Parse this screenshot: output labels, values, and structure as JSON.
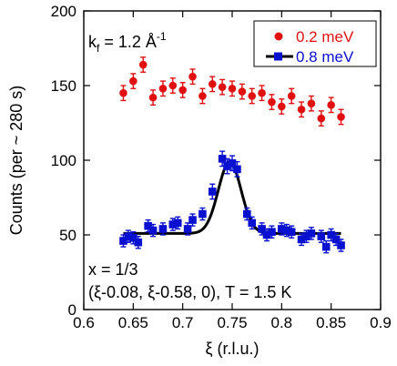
{
  "chart_data": {
    "type": "scatter",
    "xlabel": "ξ (r.l.u.)",
    "ylabel": "Counts (per ~ 280 s)",
    "xlim": [
      0.6,
      0.9
    ],
    "ylim": [
      0,
      200
    ],
    "xticks": [
      "0.6",
      "0.65",
      "0.7",
      "0.75",
      "0.8",
      "0.85",
      "0.9"
    ],
    "yticks": [
      "0",
      "50",
      "100",
      "150",
      "200"
    ],
    "annotations": {
      "kf": "k",
      "kf_sub": "f",
      "kf_eq": " = 1.2 Å",
      "kf_sup": "-1",
      "x_value": "x = 1/3",
      "conditions": "(ξ-0.08, ξ-0.58, 0), T = 1.5 K"
    },
    "legend_position": "top-right",
    "series": [
      {
        "name": "0.2 meV",
        "color": "#e01010",
        "marker": "circle",
        "x": [
          0.64,
          0.65,
          0.66,
          0.67,
          0.68,
          0.69,
          0.7,
          0.71,
          0.72,
          0.73,
          0.74,
          0.75,
          0.76,
          0.77,
          0.78,
          0.79,
          0.8,
          0.81,
          0.82,
          0.83,
          0.84,
          0.85,
          0.86
        ],
        "y": [
          145,
          153,
          164,
          142,
          148,
          150,
          147,
          156,
          143,
          151,
          149,
          148,
          146,
          143,
          145,
          139,
          136,
          143,
          134,
          138,
          128,
          137,
          129
        ],
        "err": [
          5,
          5,
          5,
          5,
          5,
          5,
          5,
          5,
          5,
          5,
          5,
          5,
          5,
          5,
          5,
          5,
          5,
          5,
          5,
          5,
          5,
          5,
          5
        ]
      },
      {
        "name": "0.8 meV",
        "color": "#0a10d0",
        "marker": "square",
        "x": [
          0.64,
          0.645,
          0.65,
          0.655,
          0.665,
          0.67,
          0.68,
          0.69,
          0.695,
          0.705,
          0.71,
          0.72,
          0.73,
          0.74,
          0.745,
          0.75,
          0.755,
          0.765,
          0.77,
          0.78,
          0.785,
          0.79,
          0.8,
          0.805,
          0.81,
          0.82,
          0.825,
          0.83,
          0.84,
          0.845,
          0.85,
          0.855,
          0.86
        ],
        "y": [
          46,
          49,
          48,
          45,
          56,
          53,
          54,
          57,
          58,
          54,
          60,
          64,
          79,
          101,
          96,
          98,
          94,
          64,
          58,
          54,
          50,
          52,
          54,
          53,
          52,
          47,
          49,
          51,
          49,
          42,
          50,
          47,
          43
        ],
        "err": [
          4,
          4,
          4,
          4,
          4,
          4,
          4,
          4,
          4,
          4,
          4,
          4,
          5,
          5,
          5,
          5,
          5,
          4,
          4,
          4,
          4,
          4,
          4,
          4,
          4,
          4,
          4,
          4,
          4,
          4,
          4,
          4,
          4
        ]
      }
    ],
    "fit": {
      "series": "0.8 meV",
      "color": "#000000",
      "background": 51,
      "amplitude": 48,
      "center": 0.7475,
      "sigma": 0.0115,
      "x_range": [
        0.64,
        0.86
      ]
    }
  }
}
